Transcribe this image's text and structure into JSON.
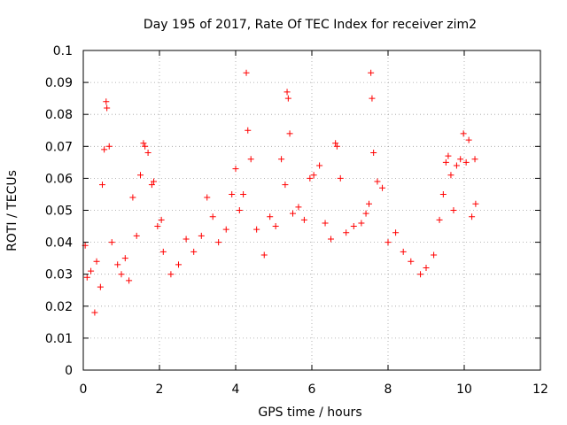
{
  "chart_data": {
    "type": "scatter",
    "title": "Day 195 of 2017, Rate Of TEC Index for receiver zim2",
    "xlabel": "GPS time / hours",
    "ylabel": "ROTI / TECUs",
    "xlim": [
      0,
      12
    ],
    "ylim": [
      0,
      0.1
    ],
    "xticks": [
      "0",
      "2",
      "4",
      "6",
      "8",
      "10",
      "12"
    ],
    "yticks": [
      "0",
      "0.01",
      "0.02",
      "0.03",
      "0.04",
      "0.05",
      "0.06",
      "0.07",
      "0.08",
      "0.09",
      "0.1"
    ],
    "grid": true,
    "marker": "+",
    "color": "#ff0000",
    "series": [
      {
        "points": [
          [
            0.05,
            0.039
          ],
          [
            0.1,
            0.029
          ],
          [
            0.2,
            0.031
          ],
          [
            0.3,
            0.018
          ],
          [
            0.35,
            0.034
          ],
          [
            0.45,
            0.026
          ],
          [
            0.5,
            0.058
          ],
          [
            0.55,
            0.069
          ],
          [
            0.6,
            0.084
          ],
          [
            0.62,
            0.082
          ],
          [
            0.68,
            0.07
          ],
          [
            0.75,
            0.04
          ],
          [
            0.9,
            0.033
          ],
          [
            1.0,
            0.03
          ],
          [
            1.1,
            0.035
          ],
          [
            1.2,
            0.028
          ],
          [
            1.3,
            0.054
          ],
          [
            1.4,
            0.042
          ],
          [
            1.5,
            0.061
          ],
          [
            1.58,
            0.071
          ],
          [
            1.62,
            0.07
          ],
          [
            1.7,
            0.068
          ],
          [
            1.8,
            0.058
          ],
          [
            1.85,
            0.059
          ],
          [
            1.95,
            0.045
          ],
          [
            2.05,
            0.047
          ],
          [
            2.1,
            0.037
          ],
          [
            2.3,
            0.03
          ],
          [
            2.5,
            0.033
          ],
          [
            2.7,
            0.041
          ],
          [
            2.9,
            0.037
          ],
          [
            3.1,
            0.042
          ],
          [
            3.25,
            0.054
          ],
          [
            3.4,
            0.048
          ],
          [
            3.55,
            0.04
          ],
          [
            3.75,
            0.044
          ],
          [
            3.9,
            0.055
          ],
          [
            4.0,
            0.063
          ],
          [
            4.1,
            0.05
          ],
          [
            4.2,
            0.055
          ],
          [
            4.28,
            0.093
          ],
          [
            4.32,
            0.075
          ],
          [
            4.4,
            0.066
          ],
          [
            4.55,
            0.044
          ],
          [
            4.75,
            0.036
          ],
          [
            4.9,
            0.048
          ],
          [
            5.05,
            0.045
          ],
          [
            5.2,
            0.066
          ],
          [
            5.3,
            0.058
          ],
          [
            5.35,
            0.087
          ],
          [
            5.38,
            0.085
          ],
          [
            5.42,
            0.074
          ],
          [
            5.5,
            0.049
          ],
          [
            5.65,
            0.051
          ],
          [
            5.8,
            0.047
          ],
          [
            5.95,
            0.06
          ],
          [
            6.05,
            0.061
          ],
          [
            6.2,
            0.064
          ],
          [
            6.35,
            0.046
          ],
          [
            6.5,
            0.041
          ],
          [
            6.62,
            0.071
          ],
          [
            6.66,
            0.07
          ],
          [
            6.75,
            0.06
          ],
          [
            6.9,
            0.043
          ],
          [
            7.1,
            0.045
          ],
          [
            7.3,
            0.046
          ],
          [
            7.42,
            0.049
          ],
          [
            7.5,
            0.052
          ],
          [
            7.55,
            0.093
          ],
          [
            7.58,
            0.085
          ],
          [
            7.62,
            0.068
          ],
          [
            7.72,
            0.059
          ],
          [
            7.85,
            0.057
          ],
          [
            8.0,
            0.04
          ],
          [
            8.2,
            0.043
          ],
          [
            8.4,
            0.037
          ],
          [
            8.6,
            0.034
          ],
          [
            8.85,
            0.03
          ],
          [
            9.0,
            0.032
          ],
          [
            9.2,
            0.036
          ],
          [
            9.35,
            0.047
          ],
          [
            9.45,
            0.055
          ],
          [
            9.52,
            0.065
          ],
          [
            9.58,
            0.067
          ],
          [
            9.65,
            0.061
          ],
          [
            9.72,
            0.05
          ],
          [
            9.8,
            0.064
          ],
          [
            9.9,
            0.066
          ],
          [
            9.98,
            0.074
          ],
          [
            10.05,
            0.065
          ],
          [
            10.12,
            0.072
          ],
          [
            10.2,
            0.048
          ],
          [
            10.28,
            0.066
          ],
          [
            10.3,
            0.052
          ]
        ]
      }
    ]
  }
}
